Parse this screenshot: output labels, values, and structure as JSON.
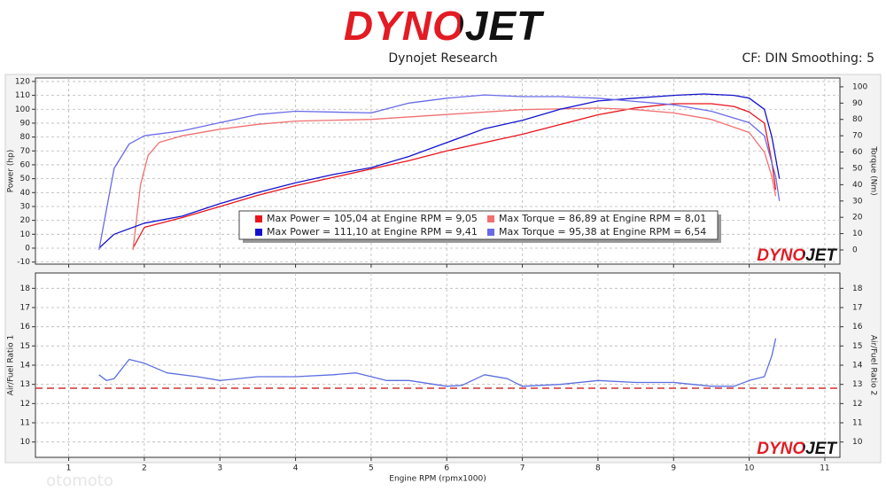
{
  "header": {
    "logo": "DYNOJET",
    "company": "Dynojet Research",
    "settings": "CF: DIN Smoothing: 5",
    "watermark": "otomoto"
  },
  "chart_data": [
    {
      "type": "line",
      "ylabel": "Power (hp)",
      "y2label": "Torque (Nm)",
      "xlim": [
        0.56,
        11.2
      ],
      "ylim": [
        -11.5,
        122.5
      ],
      "yticks": [
        -10,
        0,
        10,
        20,
        30,
        40,
        50,
        60,
        70,
        80,
        90,
        100,
        110,
        120
      ],
      "y2lim": [
        -8.7,
        105.4
      ],
      "y2ticks": [
        0,
        10,
        20,
        30,
        40,
        50,
        60,
        70,
        80,
        90,
        100
      ],
      "grid": true,
      "legend": "center",
      "watermark": "DYNOJET",
      "series": [
        {
          "name": "Max Power = 105,04 at Engine RPM = 9,05",
          "color": "#e8141c",
          "x": [
            1.85,
            2.0,
            2.5,
            3.0,
            3.5,
            4.0,
            4.5,
            5.0,
            5.5,
            6.0,
            6.5,
            7.0,
            7.5,
            8.0,
            8.5,
            9.0,
            9.5,
            9.8,
            10.0,
            10.2,
            10.3,
            10.35
          ],
          "values": [
            0,
            15,
            22,
            30,
            38,
            45,
            51,
            57,
            63,
            70,
            76,
            82,
            89,
            96,
            101,
            104,
            104,
            102,
            98,
            90,
            62,
            42
          ]
        },
        {
          "name": "Max Torque = 86,89 at Engine RPM = 8,01",
          "color": "#f07070",
          "axis": "y2",
          "x": [
            1.85,
            1.95,
            2.05,
            2.2,
            2.5,
            3.0,
            3.5,
            4.0,
            5.0,
            6.0,
            7.0,
            8.0,
            8.5,
            9.0,
            9.5,
            10.0,
            10.2,
            10.3,
            10.35
          ],
          "values": [
            0,
            40,
            58,
            66,
            70,
            74,
            77,
            79,
            80,
            83,
            86,
            87,
            86,
            84,
            80,
            72,
            60,
            45,
            33
          ]
        },
        {
          "name": "Max Power = 111,10 at Engine RPM = 9,41",
          "color": "#1212cc",
          "x": [
            1.4,
            1.6,
            2.0,
            2.5,
            3.0,
            3.5,
            4.0,
            4.5,
            5.0,
            5.5,
            6.0,
            6.5,
            7.0,
            7.5,
            8.0,
            8.5,
            9.0,
            9.4,
            9.8,
            10.0,
            10.2,
            10.3,
            10.4
          ],
          "values": [
            0,
            10,
            18,
            23,
            32,
            40,
            47,
            53,
            58,
            66,
            76,
            86,
            92,
            100,
            106,
            108,
            110,
            111,
            110,
            108,
            100,
            80,
            50
          ]
        },
        {
          "name": "Max Torque = 95,38 at Engine RPM = 6,54",
          "color": "#6a6ae8",
          "axis": "y2",
          "x": [
            1.4,
            1.6,
            1.8,
            2.0,
            2.5,
            3.0,
            3.5,
            4.0,
            5.0,
            5.5,
            6.0,
            6.5,
            7.0,
            7.5,
            8.0,
            8.5,
            9.0,
            9.5,
            10.0,
            10.2,
            10.35,
            10.4
          ],
          "values": [
            0,
            50,
            65,
            70,
            73,
            78,
            83,
            85,
            84,
            90,
            93,
            95,
            94,
            94,
            93,
            91,
            89,
            85,
            78,
            70,
            45,
            30
          ]
        }
      ]
    },
    {
      "type": "line",
      "xlabel": "Engine RPM (rpmx1000)",
      "ylabel": "Air/Fuel Ratio 1",
      "y2label": "Air/Fuel Ratio 2",
      "xlim": [
        0.56,
        11.2
      ],
      "xticks": [
        1,
        2,
        3,
        4,
        5,
        6,
        7,
        8,
        9,
        10,
        11
      ],
      "ylim": [
        9.2,
        18.8
      ],
      "yticks": [
        10,
        11,
        12,
        13,
        14,
        15,
        16,
        17,
        18
      ],
      "y2lim": [
        9.2,
        18.8
      ],
      "y2ticks": [
        10,
        11,
        12,
        13,
        14,
        15,
        16,
        17,
        18
      ],
      "threshold": 12.8,
      "threshold_color": "#d03030",
      "grid": true,
      "watermark": "DYNOJET",
      "series": [
        {
          "color": "#5b6ee0",
          "x": [
            1.4,
            1.5,
            1.6,
            1.8,
            2.0,
            2.3,
            2.7,
            3.0,
            3.5,
            4.0,
            4.5,
            4.8,
            5.2,
            5.5,
            6.0,
            6.2,
            6.5,
            6.8,
            7.0,
            7.5,
            8.0,
            8.5,
            9.0,
            9.5,
            9.8,
            10.0,
            10.2,
            10.3,
            10.35
          ],
          "values": [
            13.5,
            13.2,
            13.3,
            14.3,
            14.1,
            13.6,
            13.4,
            13.2,
            13.4,
            13.4,
            13.5,
            13.6,
            13.2,
            13.2,
            12.9,
            12.95,
            13.5,
            13.3,
            12.9,
            13.0,
            13.2,
            13.1,
            13.1,
            12.9,
            12.9,
            13.2,
            13.4,
            14.5,
            15.4
          ]
        }
      ]
    }
  ]
}
